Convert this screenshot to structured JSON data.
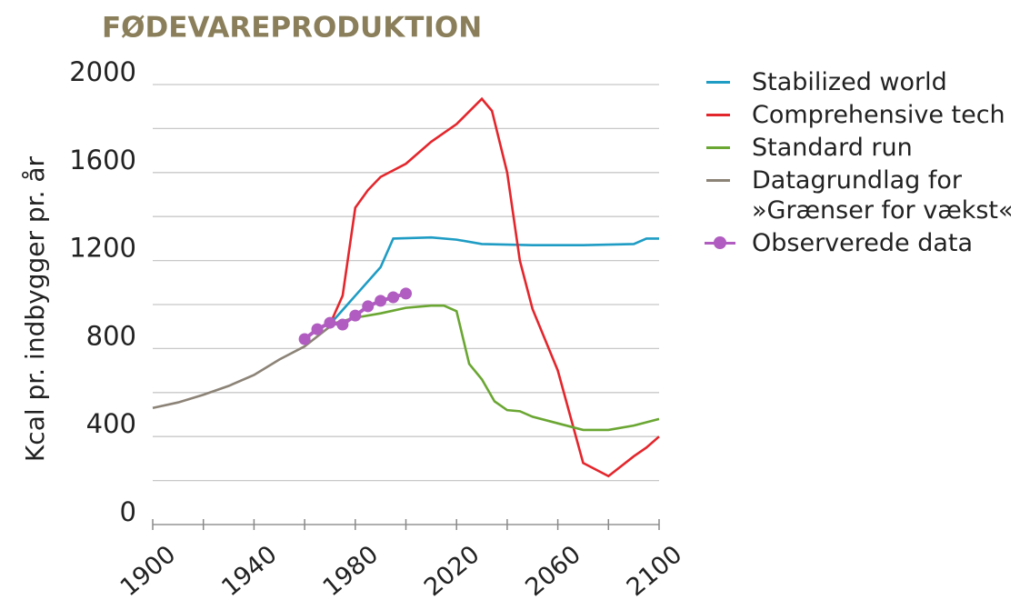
{
  "chart_data": {
    "type": "line",
    "title": "FØDEVAREPRODUKTION",
    "ylabel": "Kcal pr. indbygger pr. år",
    "xlim": [
      1900,
      2100
    ],
    "ylim": [
      0,
      2000
    ],
    "xticks": [
      1900,
      1940,
      1980,
      2020,
      2060,
      2100
    ],
    "xminorticks": [
      1920,
      1960,
      2000,
      2040,
      2080
    ],
    "yticks": [
      0,
      400,
      800,
      1200,
      1600,
      2000
    ],
    "yminorticks": [
      200,
      600,
      1000,
      1400,
      1800
    ],
    "grid": true,
    "legend": "right",
    "series": [
      {
        "name": "Stabilized world",
        "color": "#1e9cc4",
        "x": [
          1970,
          1980,
          1990,
          1995,
          2010,
          2020,
          2030,
          2050,
          2070,
          2090,
          2095,
          2100
        ],
        "values": [
          910,
          1040,
          1170,
          1300,
          1305,
          1295,
          1275,
          1270,
          1270,
          1275,
          1300,
          1300
        ]
      },
      {
        "name": "Comprehensive tech",
        "color": "#e3262c",
        "x": [
          1970,
          1975,
          1980,
          1985,
          1990,
          2000,
          2010,
          2020,
          2030,
          2034,
          2040,
          2045,
          2050,
          2060,
          2070,
          2080,
          2090,
          2095,
          2100
        ],
        "values": [
          910,
          1040,
          1440,
          1520,
          1580,
          1640,
          1740,
          1820,
          1935,
          1880,
          1600,
          1200,
          980,
          700,
          280,
          220,
          310,
          350,
          400
        ]
      },
      {
        "name": "Standard run",
        "color": "#6aa632",
        "x": [
          1970,
          1980,
          1990,
          2000,
          2010,
          2015,
          2020,
          2025,
          2030,
          2035,
          2040,
          2045,
          2050,
          2060,
          2070,
          2080,
          2090,
          2100
        ],
        "values": [
          910,
          940,
          960,
          985,
          995,
          995,
          970,
          730,
          660,
          560,
          520,
          515,
          490,
          460,
          430,
          430,
          450,
          480
        ]
      },
      {
        "name": "Datagrundlag for »Grænser for vækst«",
        "color": "#8c8377",
        "x": [
          1900,
          1910,
          1920,
          1930,
          1940,
          1950,
          1960,
          1970
        ],
        "values": [
          530,
          555,
          590,
          630,
          680,
          750,
          810,
          900
        ]
      },
      {
        "name": "Observerede data",
        "color": "#b05cc0",
        "markers": true,
        "x": [
          1960,
          1965,
          1970,
          1975,
          1980,
          1985,
          1990,
          1995,
          2000
        ],
        "values": [
          843,
          888,
          917,
          909,
          950,
          992,
          1017,
          1033,
          1050
        ]
      }
    ]
  }
}
